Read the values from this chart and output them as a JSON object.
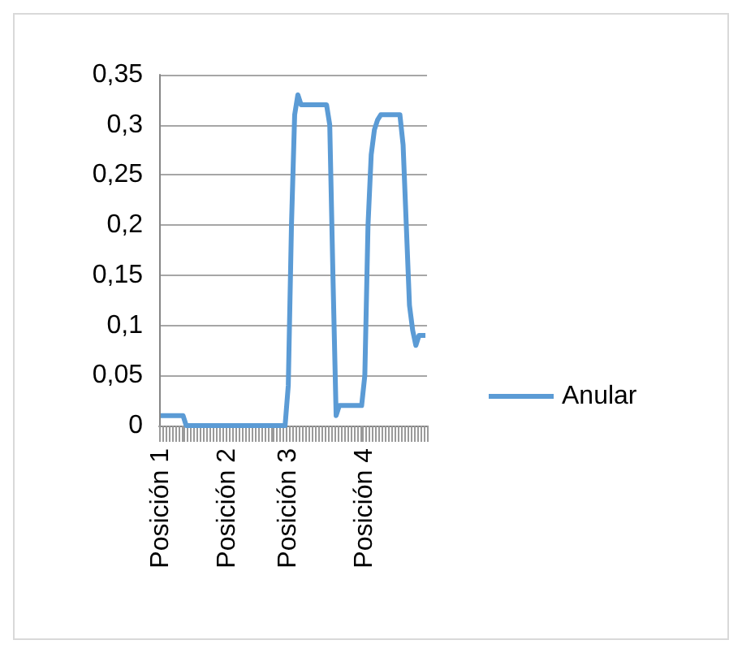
{
  "chart_data": {
    "type": "line",
    "categories": [
      "Posición 1",
      null,
      null,
      null,
      null,
      null,
      null,
      null,
      null,
      null,
      null,
      null,
      null,
      null,
      null,
      null,
      null,
      null,
      null,
      null,
      null,
      "Posición 2",
      null,
      null,
      null,
      null,
      null,
      null,
      null,
      null,
      null,
      null,
      null,
      null,
      null,
      null,
      null,
      null,
      null,
      null,
      "Posición 3",
      null,
      null,
      null,
      null,
      null,
      null,
      null,
      null,
      null,
      null,
      null,
      null,
      null,
      null,
      null,
      null,
      null,
      null,
      null,
      null,
      null,
      null,
      null,
      "Posición 4",
      null,
      null,
      null,
      null,
      null,
      null,
      null,
      null,
      null,
      null,
      null,
      null,
      null,
      null,
      null,
      null,
      null,
      null,
      null
    ],
    "series": [
      {
        "name": "Anular",
        "color": "#5b9bd5",
        "values": [
          0.01,
          0.01,
          0.01,
          0.01,
          0.01,
          0.01,
          0.01,
          0.01,
          0,
          0,
          0,
          0,
          0,
          0,
          0,
          0,
          0,
          0,
          0,
          0,
          0,
          0,
          0,
          0,
          0,
          0,
          0,
          0,
          0,
          0,
          0,
          0,
          0,
          0,
          0,
          0,
          0,
          0,
          0,
          0,
          0.04,
          0.2,
          0.31,
          0.33,
          0.32,
          0.32,
          0.32,
          0.32,
          0.32,
          0.32,
          0.32,
          0.32,
          0.32,
          0.3,
          0.15,
          0.01,
          0.02,
          0.02,
          0.02,
          0.02,
          0.02,
          0.02,
          0.02,
          0.02,
          0.05,
          0.2,
          0.27,
          0.295,
          0.305,
          0.31,
          0.31,
          0.31,
          0.31,
          0.31,
          0.31,
          0.31,
          0.28,
          0.2,
          0.12,
          0.095,
          0.08,
          0.09,
          0.09,
          0.09
        ]
      }
    ],
    "ylim": [
      0,
      0.35
    ],
    "yticks": [
      0,
      {
        "value": 0.05,
        "label": "0,05"
      },
      {
        "value": 0.1,
        "label": "0,1"
      },
      {
        "value": 0.15,
        "label": "0,15"
      },
      {
        "value": 0.2,
        "label": "0,2"
      },
      {
        "value": 0.25,
        "label": "0,25"
      },
      {
        "value": 0.3,
        "label": "0,3"
      },
      {
        "value": 0.35,
        "label": "0,35"
      }
    ],
    "grid": "y",
    "legend": "right",
    "marker": "none",
    "line_style": "solid"
  }
}
